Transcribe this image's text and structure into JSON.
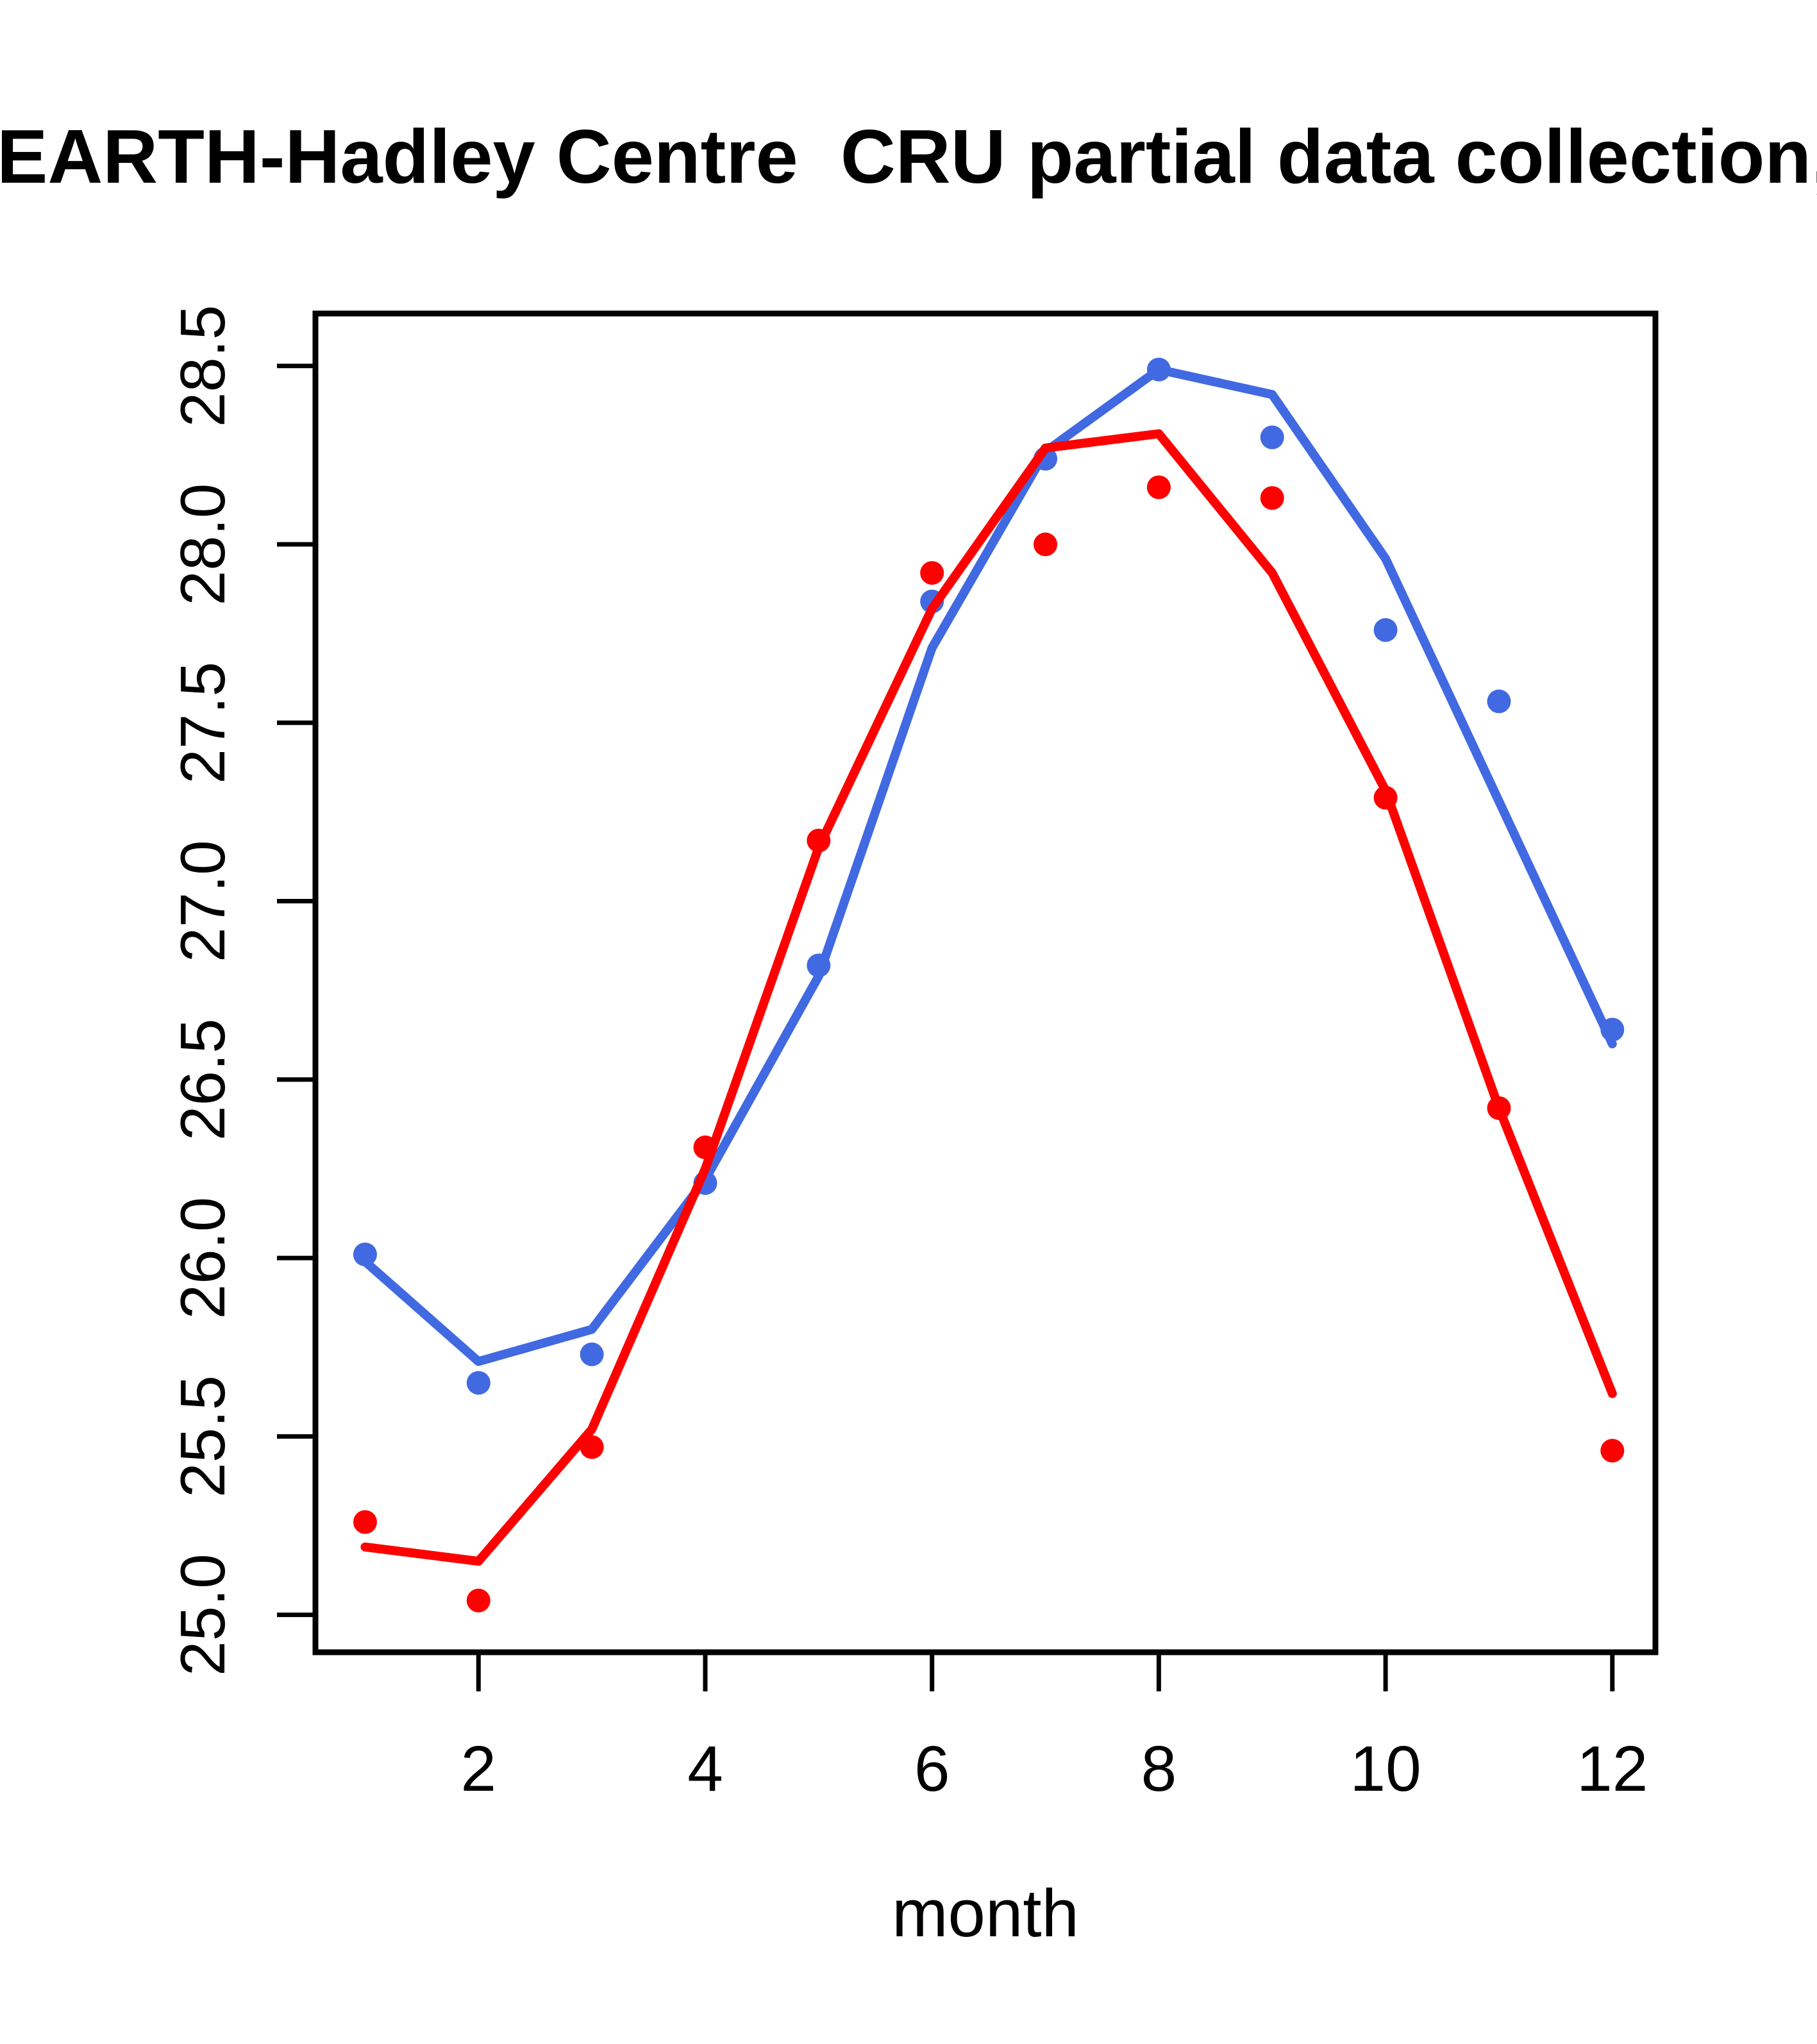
{
  "title": "EARTH-Hadley Centre  CRU partial data collection,",
  "colors": {
    "blue": "#4169E1",
    "red": "#FE0000",
    "axis": "#000000",
    "background": "#FFFFFF"
  },
  "chart_data": {
    "type": "line",
    "title": "EARTH-Hadley Centre  CRU partial data collection,",
    "xlabel": "month",
    "ylabel": "",
    "x": [
      1,
      2,
      3,
      4,
      5,
      6,
      7,
      8,
      9,
      10,
      11,
      12
    ],
    "x_tick_labels": [
      "2",
      "4",
      "6",
      "8",
      "10",
      "12"
    ],
    "x_tick_values": [
      2,
      4,
      6,
      8,
      10,
      12
    ],
    "y_tick_labels": [
      "25.0",
      "25.5",
      "26.0",
      "26.5",
      "27.0",
      "27.5",
      "28.0",
      "28.5"
    ],
    "y_tick_values": [
      25.0,
      25.5,
      26.0,
      26.5,
      27.0,
      27.5,
      28.0,
      28.5
    ],
    "xlim": [
      0.56,
      12.38
    ],
    "ylim": [
      24.9,
      28.65
    ],
    "grid": false,
    "legend": "none",
    "series": [
      {
        "name": "blue-line",
        "style": "line",
        "color": "#4169E1",
        "values": [
          25.99,
          25.71,
          25.8,
          26.22,
          26.79,
          27.71,
          28.26,
          28.49,
          28.42,
          27.96,
          27.28,
          26.6
        ]
      },
      {
        "name": "blue-points",
        "style": "points",
        "color": "#4169E1",
        "values": [
          26.01,
          25.65,
          25.73,
          26.21,
          26.82,
          27.84,
          28.24,
          28.49,
          28.3,
          27.76,
          27.56,
          26.64
        ]
      },
      {
        "name": "red-line",
        "style": "line",
        "color": "#FE0000",
        "values": [
          25.19,
          25.15,
          25.52,
          26.25,
          27.15,
          27.82,
          28.27,
          28.31,
          27.92,
          27.31,
          26.42,
          25.62
        ]
      },
      {
        "name": "red-points",
        "style": "points",
        "color": "#FE0000",
        "values": [
          25.26,
          25.04,
          25.47,
          26.31,
          27.17,
          27.92,
          28.0,
          28.16,
          28.13,
          27.29,
          26.42,
          25.46
        ]
      }
    ]
  }
}
